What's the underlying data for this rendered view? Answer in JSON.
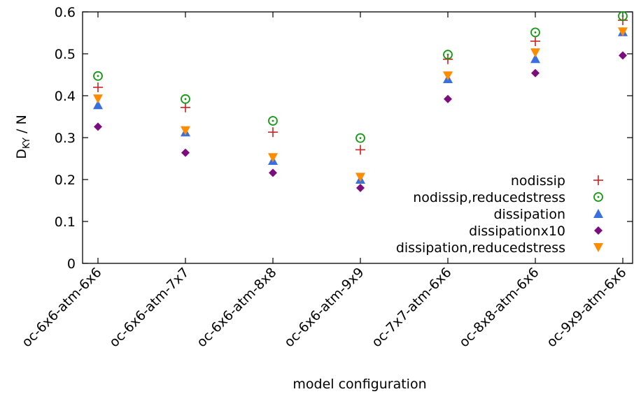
{
  "chart_data": {
    "type": "scatter",
    "xlabel": "model configuration",
    "ylabel_main": "D",
    "ylabel_sub": "KY",
    "ylabel_tail": " / N",
    "ylim": [
      0,
      0.6
    ],
    "yticks": [
      "0",
      "0.1",
      "0.2",
      "0.3",
      "0.4",
      "0.5",
      "0.6"
    ],
    "grid": false,
    "legend_position": "bottom-right",
    "categories": [
      "oc-6x6-atm-6x6",
      "oc-6x6-atm-7x7",
      "oc-6x6-atm-8x8",
      "oc-6x6-atm-9x9",
      "oc-7x7-atm-6x6",
      "oc-8x8-atm-6x6",
      "oc-9x9-atm-6x6"
    ],
    "series": [
      {
        "name": "nodissip",
        "marker": "plus",
        "color": "#cc2222",
        "values": [
          0.42,
          0.372,
          0.313,
          0.271,
          0.487,
          0.53,
          0.58
        ]
      },
      {
        "name": "nodissip,reducedstress",
        "marker": "circle-dot",
        "color": "#119911",
        "values": [
          0.447,
          0.392,
          0.34,
          0.299,
          0.498,
          0.551,
          0.59
        ]
      },
      {
        "name": "dissipation",
        "marker": "triangle-up",
        "color": "#3a6fe0",
        "values": [
          0.378,
          0.313,
          0.245,
          0.2,
          0.44,
          0.488,
          0.552
        ]
      },
      {
        "name": "dissipationx10",
        "marker": "diamond",
        "color": "#7b0d7e",
        "values": [
          0.326,
          0.264,
          0.216,
          0.18,
          0.392,
          0.454,
          0.496
        ]
      },
      {
        "name": "dissipation,reducedstress",
        "marker": "triangle-down",
        "color": "#ff8c00",
        "values": [
          0.393,
          0.317,
          0.253,
          0.206,
          0.448,
          0.503,
          0.553
        ]
      }
    ]
  }
}
